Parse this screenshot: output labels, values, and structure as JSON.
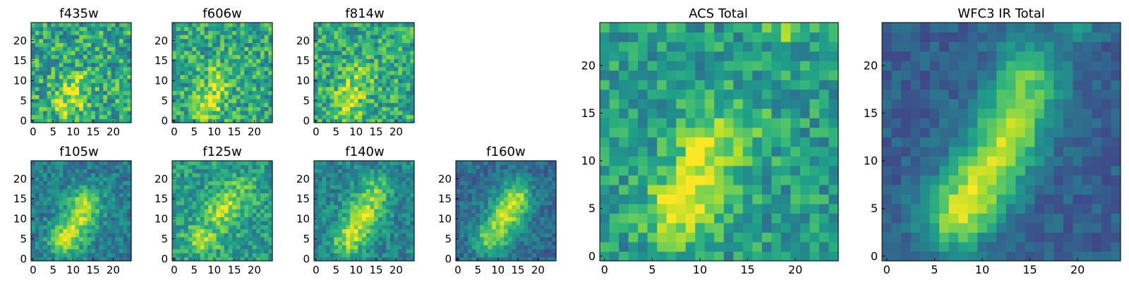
{
  "chart_data": [
    {
      "type": "heatmap",
      "title": "f435w",
      "x_ticks": [
        0,
        5,
        10,
        15,
        20
      ],
      "y_ticks": [
        0,
        5,
        10,
        15,
        20
      ],
      "xlim": [
        0,
        25
      ],
      "ylim": [
        0,
        25
      ],
      "colormap": "viridis",
      "blobs": [
        {
          "x": 9,
          "y": 5,
          "amp": 0.3,
          "sx": 3,
          "sy": 3
        },
        {
          "x": 11,
          "y": 10,
          "amp": 0.2,
          "sx": 2,
          "sy": 2
        }
      ],
      "base": 0.6,
      "noise": 0.5,
      "seed": 11
    },
    {
      "type": "heatmap",
      "title": "f606w",
      "x_ticks": [
        0,
        5,
        10,
        15,
        20
      ],
      "y_ticks": [
        0,
        5,
        10,
        15,
        20
      ],
      "xlim": [
        0,
        25
      ],
      "ylim": [
        0,
        25
      ],
      "colormap": "viridis",
      "blobs": [
        {
          "x": 8,
          "y": 4,
          "amp": 0.35,
          "sx": 2.5,
          "sy": 2.5
        },
        {
          "x": 11,
          "y": 10,
          "amp": 0.25,
          "sx": 2.5,
          "sy": 3
        }
      ],
      "base": 0.6,
      "noise": 0.45,
      "seed": 23
    },
    {
      "type": "heatmap",
      "title": "f814w",
      "x_ticks": [
        0,
        5,
        10,
        15,
        20
      ],
      "y_ticks": [
        0,
        5,
        10,
        15,
        20
      ],
      "xlim": [
        0,
        25
      ],
      "ylim": [
        0,
        25
      ],
      "colormap": "viridis",
      "blobs": [
        {
          "x": 8,
          "y": 5,
          "amp": 0.35,
          "sx": 2.5,
          "sy": 3
        },
        {
          "x": 11,
          "y": 11,
          "amp": 0.2,
          "sx": 2.5,
          "sy": 2.5
        }
      ],
      "base": 0.6,
      "noise": 0.45,
      "seed": 37
    },
    {
      "type": "heatmap",
      "title": "f105w",
      "x_ticks": [
        0,
        5,
        10,
        15,
        20
      ],
      "y_ticks": [
        0,
        5,
        10,
        15,
        20
      ],
      "xlim": [
        0,
        25
      ],
      "ylim": [
        0,
        25
      ],
      "colormap": "viridis",
      "blobs": [
        {
          "x": 8,
          "y": 5,
          "amp": 0.45,
          "sx": 3,
          "sy": 3
        },
        {
          "x": 12,
          "y": 11,
          "amp": 0.4,
          "sx": 3,
          "sy": 3.5
        },
        {
          "x": 14,
          "y": 15,
          "amp": 0.25,
          "sx": 2.5,
          "sy": 2.5
        }
      ],
      "base": 0.42,
      "noise": 0.3,
      "seed": 41
    },
    {
      "type": "heatmap",
      "title": "f125w",
      "x_ticks": [
        0,
        5,
        10,
        15,
        20
      ],
      "y_ticks": [
        0,
        5,
        10,
        15,
        20
      ],
      "xlim": [
        0,
        25
      ],
      "ylim": [
        0,
        25
      ],
      "colormap": "viridis",
      "blobs": [
        {
          "x": 7,
          "y": 5,
          "amp": 0.3,
          "sx": 3,
          "sy": 2.5
        },
        {
          "x": 12,
          "y": 12,
          "amp": 0.3,
          "sx": 3,
          "sy": 3
        },
        {
          "x": 16,
          "y": 17,
          "amp": 0.2,
          "sx": 3,
          "sy": 2.5
        }
      ],
      "base": 0.55,
      "noise": 0.35,
      "seed": 53
    },
    {
      "type": "heatmap",
      "title": "f140w",
      "x_ticks": [
        0,
        5,
        10,
        15,
        20
      ],
      "y_ticks": [
        0,
        5,
        10,
        15,
        20
      ],
      "xlim": [
        0,
        25
      ],
      "ylim": [
        0,
        25
      ],
      "colormap": "viridis",
      "blobs": [
        {
          "x": 8,
          "y": 5,
          "amp": 0.4,
          "sx": 3,
          "sy": 3
        },
        {
          "x": 12,
          "y": 11,
          "amp": 0.4,
          "sx": 3,
          "sy": 3.5
        },
        {
          "x": 15,
          "y": 17,
          "amp": 0.3,
          "sx": 2.5,
          "sy": 3
        }
      ],
      "base": 0.45,
      "noise": 0.3,
      "seed": 67
    },
    {
      "type": "heatmap",
      "title": "f160w",
      "x_ticks": [
        0,
        5,
        10,
        15,
        20
      ],
      "y_ticks": [
        0,
        5,
        10,
        15,
        20
      ],
      "xlim": [
        0,
        25
      ],
      "ylim": [
        0,
        25
      ],
      "colormap": "viridis",
      "blobs": [
        {
          "x": 8,
          "y": 5,
          "amp": 0.45,
          "sx": 3,
          "sy": 3
        },
        {
          "x": 12,
          "y": 11,
          "amp": 0.5,
          "sx": 3,
          "sy": 3.5
        },
        {
          "x": 15,
          "y": 16,
          "amp": 0.4,
          "sx": 2.5,
          "sy": 3
        }
      ],
      "base": 0.35,
      "noise": 0.25,
      "seed": 79
    },
    {
      "type": "heatmap",
      "title": "ACS Total",
      "x_ticks": [
        0,
        5,
        10,
        15,
        20
      ],
      "y_ticks": [
        0,
        5,
        10,
        15,
        20
      ],
      "xlim": [
        0,
        25
      ],
      "ylim": [
        0,
        25
      ],
      "colormap": "viridis",
      "blobs": [
        {
          "x": 8,
          "y": 5,
          "amp": 0.45,
          "sx": 2.5,
          "sy": 2.5
        },
        {
          "x": 10,
          "y": 10,
          "amp": 0.3,
          "sx": 2,
          "sy": 2.5
        },
        {
          "x": 13,
          "y": 13,
          "amp": 0.2,
          "sx": 3,
          "sy": 3
        },
        {
          "x": 19,
          "y": 24,
          "amp": 0.3,
          "sx": 1.5,
          "sy": 1
        }
      ],
      "base": 0.55,
      "noise": 0.35,
      "seed": 97
    },
    {
      "type": "heatmap",
      "title": "WFC3 IR Total",
      "x_ticks": [
        0,
        5,
        10,
        15,
        20
      ],
      "y_ticks": [
        0,
        5,
        10,
        15,
        20
      ],
      "xlim": [
        0,
        25
      ],
      "ylim": [
        0,
        25
      ],
      "colormap": "viridis",
      "blobs": [
        {
          "x": 7,
          "y": 4,
          "amp": 0.5,
          "sx": 2.5,
          "sy": 2.5
        },
        {
          "x": 10,
          "y": 8,
          "amp": 0.5,
          "sx": 2.5,
          "sy": 3
        },
        {
          "x": 13,
          "y": 13,
          "amp": 0.5,
          "sx": 2.5,
          "sy": 3
        },
        {
          "x": 15,
          "y": 19,
          "amp": 0.4,
          "sx": 2.5,
          "sy": 3
        },
        {
          "x": 20,
          "y": 24,
          "amp": 0.25,
          "sx": 1.5,
          "sy": 1
        }
      ],
      "base": 0.3,
      "noise": 0.18,
      "seed": 113
    }
  ]
}
